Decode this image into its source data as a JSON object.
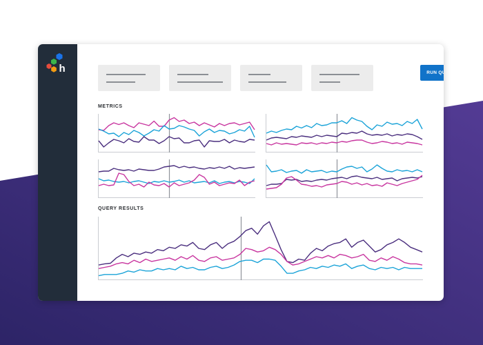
{
  "colors": {
    "background_gradient": [
      "#2d2467",
      "#533b94"
    ],
    "sidebar": "#222d3a",
    "accent_blue": "#1173c9",
    "series_purple": "#4a2e7e",
    "series_magenta": "#c8359f",
    "series_cyan": "#1aa3d8",
    "logo_blue": "#1a73e8",
    "logo_green": "#3bb54a",
    "logo_orange": "#f39c12",
    "logo_red": "#e74c3c"
  },
  "sidebar": {
    "logo_icon": "honeycomb-logo-icon",
    "logo_letter": "h"
  },
  "toolbar": {
    "filters": [
      {
        "icon": "placeholder-text"
      },
      {
        "icon": "placeholder-text"
      },
      {
        "icon": "placeholder-text"
      },
      {
        "icon": "placeholder-text"
      }
    ],
    "run_label": "RUN QUERY"
  },
  "metrics": {
    "title": "METRICS"
  },
  "results": {
    "title": "QUERY RESULTS"
  },
  "chart_data": [
    {
      "type": "line",
      "title": "",
      "xlabel": "",
      "ylabel": "",
      "ylim": [
        0,
        1
      ],
      "grid": false,
      "marker_x": 0.45,
      "series": [
        {
          "color": "#c8359f",
          "values": [
            0.6,
            0.58,
            0.72,
            0.8,
            0.75,
            0.8,
            0.72,
            0.66,
            0.8,
            0.76,
            0.72,
            0.85,
            0.7,
            0.7,
            0.88,
            0.95,
            0.84,
            0.88,
            0.78,
            0.82,
            0.72,
            0.8,
            0.74,
            0.68,
            0.78,
            0.72,
            0.78,
            0.8,
            0.74,
            0.78,
            0.82,
            0.6
          ]
        },
        {
          "color": "#1aa3d8",
          "values": [
            0.62,
            0.56,
            0.48,
            0.5,
            0.4,
            0.52,
            0.46,
            0.58,
            0.52,
            0.42,
            0.5,
            0.6,
            0.56,
            0.72,
            0.62,
            0.64,
            0.72,
            0.68,
            0.62,
            0.58,
            0.42,
            0.54,
            0.62,
            0.52,
            0.58,
            0.56,
            0.48,
            0.52,
            0.6,
            0.56,
            0.7,
            0.38
          ]
        },
        {
          "color": "#4a2e7e",
          "values": [
            0.28,
            0.1,
            0.22,
            0.32,
            0.28,
            0.22,
            0.34,
            0.26,
            0.24,
            0.4,
            0.3,
            0.3,
            0.2,
            0.28,
            0.4,
            0.34,
            0.36,
            0.22,
            0.22,
            0.28,
            0.3,
            0.1,
            0.28,
            0.26,
            0.26,
            0.32,
            0.22,
            0.3,
            0.26,
            0.24,
            0.32,
            0.3
          ]
        }
      ]
    },
    {
      "type": "line",
      "title": "",
      "xlabel": "",
      "ylabel": "",
      "ylim": [
        0,
        1
      ],
      "grid": false,
      "marker_x": 0.45,
      "series": [
        {
          "color": "#1aa3d8",
          "values": [
            0.5,
            0.56,
            0.52,
            0.58,
            0.62,
            0.6,
            0.7,
            0.65,
            0.72,
            0.66,
            0.78,
            0.72,
            0.74,
            0.8,
            0.8,
            0.86,
            0.78,
            0.95,
            0.88,
            0.84,
            0.7,
            0.6,
            0.74,
            0.7,
            0.82,
            0.76,
            0.78,
            0.72,
            0.84,
            0.78,
            0.9,
            0.62
          ]
        },
        {
          "color": "#4a2e7e",
          "values": [
            0.3,
            0.36,
            0.38,
            0.36,
            0.34,
            0.4,
            0.38,
            0.42,
            0.4,
            0.38,
            0.44,
            0.4,
            0.44,
            0.42,
            0.4,
            0.5,
            0.48,
            0.52,
            0.5,
            0.56,
            0.48,
            0.44,
            0.46,
            0.44,
            0.48,
            0.42,
            0.46,
            0.44,
            0.48,
            0.46,
            0.4,
            0.32
          ]
        },
        {
          "color": "#c8359f",
          "values": [
            0.2,
            0.16,
            0.22,
            0.18,
            0.2,
            0.18,
            0.16,
            0.22,
            0.2,
            0.22,
            0.18,
            0.22,
            0.2,
            0.24,
            0.22,
            0.26,
            0.24,
            0.28,
            0.3,
            0.3,
            0.24,
            0.2,
            0.22,
            0.26,
            0.24,
            0.2,
            0.22,
            0.18,
            0.24,
            0.22,
            0.2,
            0.16
          ]
        }
      ]
    },
    {
      "type": "line",
      "title": "",
      "xlabel": "",
      "ylabel": "",
      "ylim": [
        0,
        1
      ],
      "grid": false,
      "marker_x": 0.45,
      "series": [
        {
          "color": "#4a2e7e",
          "values": [
            0.7,
            0.72,
            0.72,
            0.8,
            0.76,
            0.74,
            0.76,
            0.72,
            0.78,
            0.76,
            0.74,
            0.74,
            0.78,
            0.84,
            0.86,
            0.88,
            0.82,
            0.86,
            0.82,
            0.84,
            0.8,
            0.78,
            0.82,
            0.8,
            0.84,
            0.8,
            0.86,
            0.78,
            0.82,
            0.8,
            0.82,
            0.84
          ]
        },
        {
          "color": "#1aa3d8",
          "values": [
            0.5,
            0.44,
            0.46,
            0.42,
            0.4,
            0.42,
            0.38,
            0.42,
            0.44,
            0.4,
            0.36,
            0.42,
            0.4,
            0.44,
            0.4,
            0.42,
            0.46,
            0.4,
            0.44,
            0.38,
            0.4,
            0.42,
            0.38,
            0.44,
            0.36,
            0.4,
            0.42,
            0.38,
            0.42,
            0.4,
            0.36,
            0.5
          ]
        },
        {
          "color": "#c8359f",
          "values": [
            0.3,
            0.34,
            0.3,
            0.32,
            0.66,
            0.62,
            0.42,
            0.3,
            0.34,
            0.26,
            0.4,
            0.32,
            0.3,
            0.36,
            0.26,
            0.38,
            0.3,
            0.34,
            0.38,
            0.46,
            0.62,
            0.54,
            0.34,
            0.4,
            0.3,
            0.34,
            0.38,
            0.36,
            0.46,
            0.3,
            0.4,
            0.44
          ]
        }
      ]
    },
    {
      "type": "line",
      "title": "",
      "xlabel": "",
      "ylabel": "",
      "ylim": [
        0,
        1
      ],
      "grid": false,
      "marker_x": 0.45,
      "series": [
        {
          "color": "#1aa3d8",
          "values": [
            0.9,
            0.7,
            0.72,
            0.76,
            0.68,
            0.72,
            0.74,
            0.66,
            0.76,
            0.7,
            0.72,
            0.74,
            0.68,
            0.72,
            0.7,
            0.78,
            0.84,
            0.86,
            0.8,
            0.84,
            0.7,
            0.78,
            0.9,
            0.8,
            0.72,
            0.7,
            0.76,
            0.72,
            0.74,
            0.7,
            0.76,
            0.7
          ]
        },
        {
          "color": "#4a2e7e",
          "values": [
            0.3,
            0.34,
            0.34,
            0.36,
            0.48,
            0.46,
            0.48,
            0.42,
            0.44,
            0.42,
            0.46,
            0.48,
            0.46,
            0.5,
            0.52,
            0.54,
            0.5,
            0.56,
            0.58,
            0.54,
            0.52,
            0.5,
            0.54,
            0.48,
            0.5,
            0.52,
            0.44,
            0.5,
            0.52,
            0.54,
            0.52,
            0.56
          ]
        },
        {
          "color": "#c8359f",
          "values": [
            0.2,
            0.22,
            0.24,
            0.34,
            0.52,
            0.56,
            0.46,
            0.34,
            0.32,
            0.28,
            0.3,
            0.26,
            0.32,
            0.34,
            0.36,
            0.42,
            0.4,
            0.34,
            0.38,
            0.32,
            0.36,
            0.3,
            0.32,
            0.28,
            0.38,
            0.34,
            0.3,
            0.36,
            0.4,
            0.44,
            0.48,
            0.6
          ]
        }
      ]
    },
    {
      "type": "line",
      "title": "",
      "xlabel": "",
      "ylabel": "",
      "ylim": [
        0,
        1
      ],
      "grid": false,
      "marker_x": 0.44,
      "series": [
        {
          "color": "#4a2e7e",
          "values": [
            0.22,
            0.24,
            0.25,
            0.34,
            0.4,
            0.36,
            0.42,
            0.4,
            0.44,
            0.42,
            0.48,
            0.46,
            0.52,
            0.5,
            0.56,
            0.54,
            0.6,
            0.5,
            0.48,
            0.56,
            0.6,
            0.5,
            0.58,
            0.62,
            0.7,
            0.8,
            0.84,
            0.74,
            0.88,
            0.95,
            0.72,
            0.48,
            0.28,
            0.26,
            0.32,
            0.3,
            0.42,
            0.5,
            0.46,
            0.54,
            0.58,
            0.6,
            0.66,
            0.52,
            0.6,
            0.64,
            0.54,
            0.44,
            0.48,
            0.56,
            0.6,
            0.66,
            0.6,
            0.52,
            0.48,
            0.44
          ]
        },
        {
          "color": "#c8359f",
          "values": [
            0.16,
            0.18,
            0.2,
            0.24,
            0.26,
            0.24,
            0.3,
            0.26,
            0.32,
            0.28,
            0.3,
            0.32,
            0.34,
            0.3,
            0.36,
            0.32,
            0.38,
            0.3,
            0.28,
            0.34,
            0.36,
            0.3,
            0.32,
            0.34,
            0.4,
            0.5,
            0.48,
            0.44,
            0.46,
            0.52,
            0.48,
            0.4,
            0.28,
            0.22,
            0.24,
            0.28,
            0.32,
            0.36,
            0.34,
            0.38,
            0.34,
            0.4,
            0.38,
            0.34,
            0.36,
            0.4,
            0.3,
            0.28,
            0.34,
            0.3,
            0.36,
            0.32,
            0.26,
            0.24,
            0.24,
            0.22
          ]
        },
        {
          "color": "#1aa3d8",
          "values": [
            0.04,
            0.06,
            0.06,
            0.06,
            0.08,
            0.12,
            0.1,
            0.14,
            0.12,
            0.12,
            0.16,
            0.14,
            0.16,
            0.14,
            0.2,
            0.16,
            0.18,
            0.14,
            0.14,
            0.18,
            0.2,
            0.16,
            0.18,
            0.22,
            0.28,
            0.3,
            0.3,
            0.26,
            0.32,
            0.32,
            0.3,
            0.2,
            0.08,
            0.08,
            0.12,
            0.14,
            0.18,
            0.16,
            0.2,
            0.18,
            0.22,
            0.2,
            0.24,
            0.16,
            0.2,
            0.22,
            0.16,
            0.14,
            0.18,
            0.16,
            0.18,
            0.14,
            0.18,
            0.16,
            0.16,
            0.16
          ]
        }
      ]
    }
  ]
}
